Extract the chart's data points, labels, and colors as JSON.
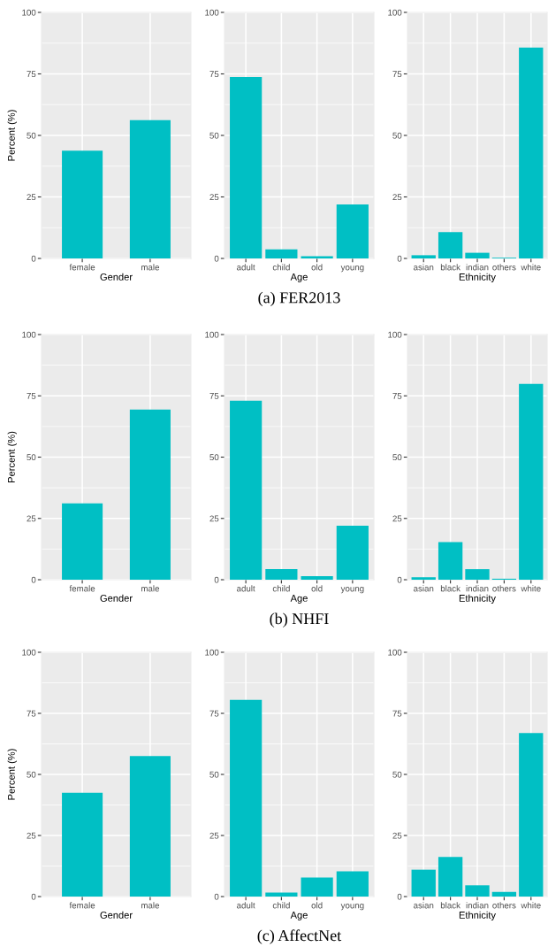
{
  "chart_data": [
    {
      "type": "bar",
      "categories": [
        "female",
        "male"
      ],
      "values": [
        43.8,
        56.2
      ],
      "color": "#00bfc4",
      "xlabel": "Gender",
      "ylabel": "Percent (%)",
      "ylim": [
        0,
        100
      ],
      "yticks": [
        0,
        25,
        50,
        75,
        100
      ],
      "grid": true
    },
    {
      "type": "bar",
      "categories": [
        "adult",
        "child",
        "old",
        "young"
      ],
      "values": [
        73.7,
        3.7,
        0.9,
        21.9
      ],
      "color": "#00bfc4",
      "xlabel": "Age",
      "ylim": [
        0,
        100
      ],
      "yticks": [
        0,
        25,
        50,
        75,
        100
      ],
      "grid": true,
      "annotations": [
        "(a) FER2013"
      ]
    },
    {
      "type": "bar",
      "categories": [
        "asian",
        "black",
        "indian",
        "others",
        "white"
      ],
      "values": [
        1.3,
        10.7,
        2.3,
        0.3,
        85.7
      ],
      "color": "#00bfc4",
      "xlabel": "Ethnicity",
      "ylim": [
        0,
        100
      ],
      "yticks": [
        0,
        25,
        50,
        75,
        100
      ],
      "grid": true
    },
    {
      "type": "bar",
      "categories": [
        "female",
        "male"
      ],
      "values": [
        31.1,
        69.4
      ],
      "color": "#00bfc4",
      "xlabel": "Gender",
      "ylabel": "Percent (%)",
      "ylim": [
        0,
        100
      ],
      "yticks": [
        0,
        25,
        50,
        75,
        100
      ],
      "grid": true
    },
    {
      "type": "bar",
      "categories": [
        "adult",
        "child",
        "old",
        "young"
      ],
      "values": [
        73.0,
        4.3,
        1.4,
        22.0
      ],
      "color": "#00bfc4",
      "xlabel": "Age",
      "ylim": [
        0,
        100
      ],
      "yticks": [
        0,
        25,
        50,
        75,
        100
      ],
      "grid": true,
      "annotations": [
        "(b) NHFI"
      ]
    },
    {
      "type": "bar",
      "categories": [
        "asian",
        "black",
        "indian",
        "others",
        "white"
      ],
      "values": [
        1.0,
        15.3,
        4.3,
        0.4,
        79.9
      ],
      "color": "#00bfc4",
      "xlabel": "Ethnicity",
      "ylim": [
        0,
        100
      ],
      "yticks": [
        0,
        25,
        50,
        75,
        100
      ],
      "grid": true
    },
    {
      "type": "bar",
      "categories": [
        "female",
        "male"
      ],
      "values": [
        42.5,
        57.5
      ],
      "color": "#00bfc4",
      "xlabel": "Gender",
      "ylabel": "Percent (%)",
      "ylim": [
        0,
        100
      ],
      "yticks": [
        0,
        25,
        50,
        75,
        100
      ],
      "grid": true
    },
    {
      "type": "bar",
      "categories": [
        "adult",
        "child",
        "old",
        "young"
      ],
      "values": [
        80.5,
        1.6,
        7.8,
        10.3
      ],
      "color": "#00bfc4",
      "xlabel": "Age",
      "ylim": [
        0,
        100
      ],
      "yticks": [
        0,
        25,
        50,
        75,
        100
      ],
      "grid": true,
      "annotations": [
        "(c) AffectNet"
      ]
    },
    {
      "type": "bar",
      "categories": [
        "asian",
        "black",
        "indian",
        "others",
        "white"
      ],
      "values": [
        11.0,
        16.2,
        4.6,
        1.9,
        66.9
      ],
      "color": "#00bfc4",
      "xlabel": "Ethnicity",
      "ylim": [
        0,
        100
      ],
      "yticks": [
        0,
        25,
        50,
        75,
        100
      ],
      "grid": true
    }
  ]
}
